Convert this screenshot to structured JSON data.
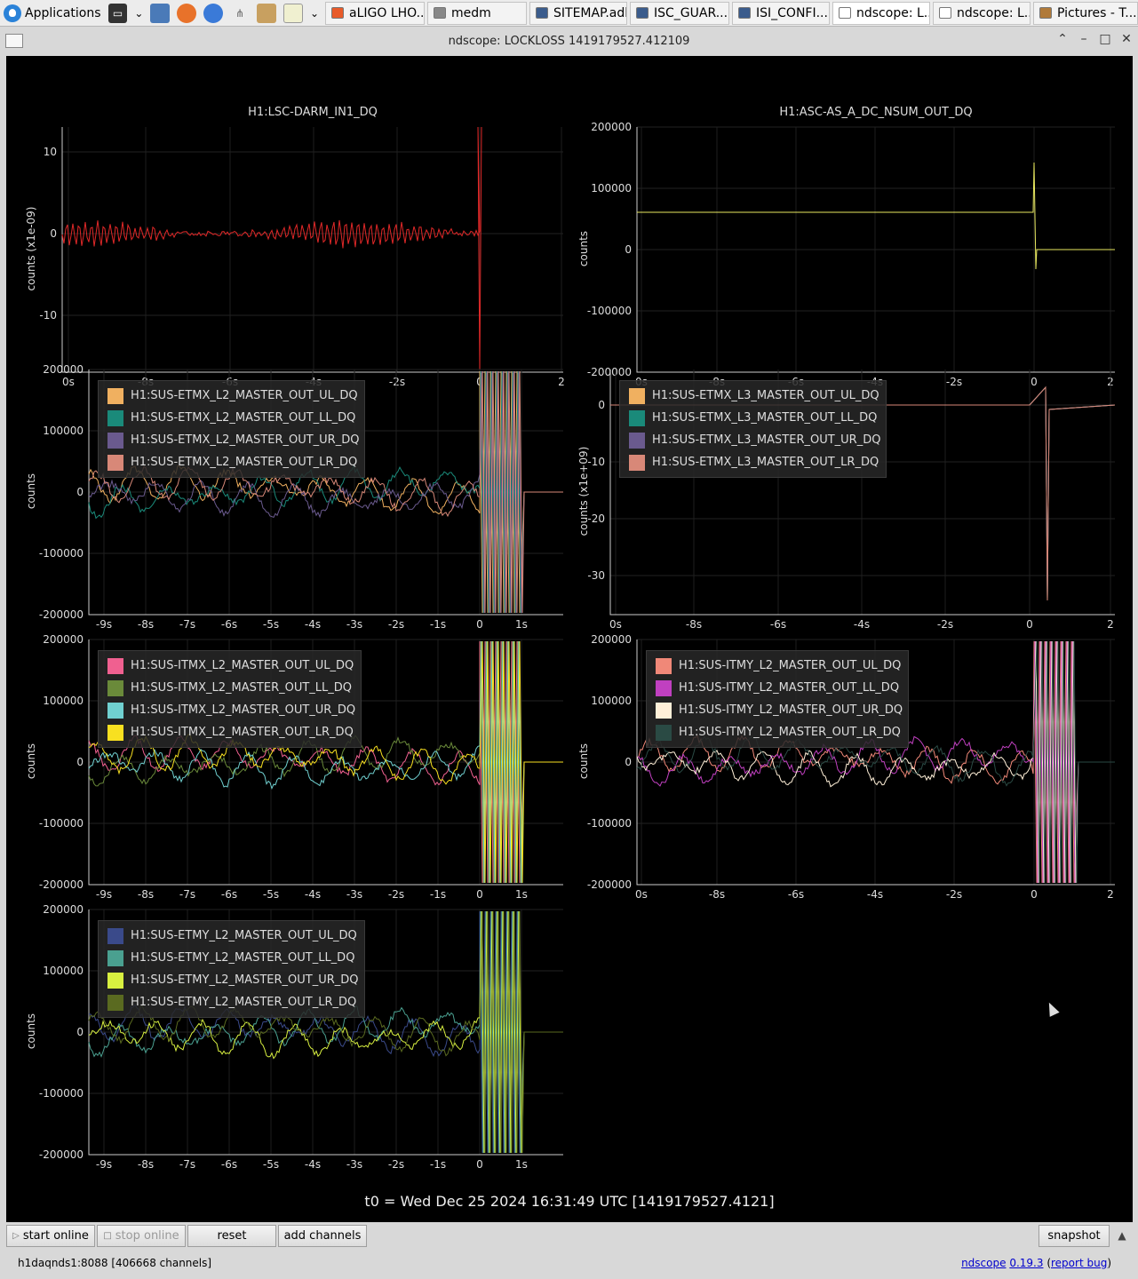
{
  "taskbar": {
    "apps_label": "Applications",
    "tasks": [
      {
        "label": "aLIGO LHO...",
        "color": "#e85b2a"
      },
      {
        "label": "medm",
        "color": "#888888"
      },
      {
        "label": "SITEMAP.adl",
        "color": "#3b5c8c"
      },
      {
        "label": "ISC_GUAR...",
        "color": "#3b5c8c"
      },
      {
        "label": "ISI_CONFI...",
        "color": "#3b5c8c"
      },
      {
        "label": "ndscope: L...",
        "color": "#ffffff"
      },
      {
        "label": "ndscope: L...",
        "color": "#ffffff"
      },
      {
        "label": "Pictures - T...",
        "color": "#b07a3a"
      }
    ]
  },
  "window": {
    "title": "ndscope: LOCKLOSS 1419179527.412109",
    "controls": [
      "^",
      "_",
      "□",
      "×"
    ]
  },
  "plots": [
    {
      "title": "H1:LSC-DARM_IN1_DQ",
      "ylabel": "counts (x1e-09)",
      "yticks": [
        "10",
        "0",
        "-10"
      ],
      "xticks": [
        "0s",
        "-8s",
        "-6s",
        "-4s",
        "-2s",
        "0",
        "2"
      ],
      "legend": []
    },
    {
      "title": "H1:ASC-AS_A_DC_NSUM_OUT_DQ",
      "ylabel": "counts",
      "yticks": [
        "200000",
        "100000",
        "0",
        "-100000",
        "-200000"
      ],
      "xticks": [
        "0s",
        "-8s",
        "-6s",
        "-4s",
        "-2s",
        "0",
        "2"
      ],
      "legend": []
    },
    {
      "title": "",
      "ylabel": "counts",
      "yticks": [
        "200000",
        "100000",
        "0",
        "-100000",
        "-200000"
      ],
      "xticks": [
        "-9s",
        "-8s",
        "-7s",
        "-6s",
        "-5s",
        "-4s",
        "-3s",
        "-2s",
        "-1s",
        "0",
        "1s"
      ],
      "legend": [
        {
          "label": "H1:SUS-ETMX_L2_MASTER_OUT_UL_DQ",
          "color": "#f0b060"
        },
        {
          "label": "H1:SUS-ETMX_L2_MASTER_OUT_LL_DQ",
          "color": "#1a8a7a"
        },
        {
          "label": "H1:SUS-ETMX_L2_MASTER_OUT_UR_DQ",
          "color": "#6a5a8e"
        },
        {
          "label": "H1:SUS-ETMX_L2_MASTER_OUT_LR_DQ",
          "color": "#d88878"
        }
      ]
    },
    {
      "title": "",
      "ylabel": "counts (x1e+09)",
      "yticks": [
        "0",
        "-10",
        "-20",
        "-30"
      ],
      "xticks": [
        "0s",
        "-8s",
        "-6s",
        "-4s",
        "-2s",
        "0",
        "2"
      ],
      "legend": [
        {
          "label": "H1:SUS-ETMX_L3_MASTER_OUT_UL_DQ",
          "color": "#f0b060"
        },
        {
          "label": "H1:SUS-ETMX_L3_MASTER_OUT_LL_DQ",
          "color": "#1a8a7a"
        },
        {
          "label": "H1:SUS-ETMX_L3_MASTER_OUT_UR_DQ",
          "color": "#6a5a8e"
        },
        {
          "label": "H1:SUS-ETMX_L3_MASTER_OUT_LR_DQ",
          "color": "#d88878"
        }
      ]
    },
    {
      "title": "",
      "ylabel": "counts",
      "yticks": [
        "200000",
        "100000",
        "0",
        "-100000",
        "-200000"
      ],
      "xticks": [
        "-9s",
        "-8s",
        "-7s",
        "-6s",
        "-5s",
        "-4s",
        "-3s",
        "-2s",
        "-1s",
        "0",
        "1s"
      ],
      "legend": [
        {
          "label": "H1:SUS-ITMX_L2_MASTER_OUT_UL_DQ",
          "color": "#f06090"
        },
        {
          "label": "H1:SUS-ITMX_L2_MASTER_OUT_LL_DQ",
          "color": "#6a8a3a"
        },
        {
          "label": "H1:SUS-ITMX_L2_MASTER_OUT_UR_DQ",
          "color": "#70d0d0"
        },
        {
          "label": "H1:SUS-ITMX_L2_MASTER_OUT_LR_DQ",
          "color": "#f8e020"
        }
      ]
    },
    {
      "title": "",
      "ylabel": "counts",
      "yticks": [
        "200000",
        "100000",
        "0",
        "-100000",
        "-200000"
      ],
      "xticks": [
        "0s",
        "-8s",
        "-6s",
        "-4s",
        "-2s",
        "0",
        "2"
      ],
      "legend": [
        {
          "label": "H1:SUS-ITMY_L2_MASTER_OUT_UL_DQ",
          "color": "#f08878"
        },
        {
          "label": "H1:SUS-ITMY_L2_MASTER_OUT_LL_DQ",
          "color": "#c040c0"
        },
        {
          "label": "H1:SUS-ITMY_L2_MASTER_OUT_UR_DQ",
          "color": "#fff0d8"
        },
        {
          "label": "H1:SUS-ITMY_L2_MASTER_OUT_LR_DQ",
          "color": "#2a4a44"
        }
      ]
    },
    {
      "title": "",
      "ylabel": "counts",
      "yticks": [
        "200000",
        "100000",
        "0",
        "-100000",
        "-200000"
      ],
      "xticks": [
        "-9s",
        "-8s",
        "-7s",
        "-6s",
        "-5s",
        "-4s",
        "-3s",
        "-2s",
        "-1s",
        "0",
        "1s"
      ],
      "legend": [
        {
          "label": "H1:SUS-ETMY_L2_MASTER_OUT_UL_DQ",
          "color": "#3a4a8a"
        },
        {
          "label": "H1:SUS-ETMY_L2_MASTER_OUT_LL_DQ",
          "color": "#4aa090"
        },
        {
          "label": "H1:SUS-ETMY_L2_MASTER_OUT_UR_DQ",
          "color": "#d8f040"
        },
        {
          "label": "H1:SUS-ETMY_L2_MASTER_OUT_LR_DQ",
          "color": "#5a6a20"
        }
      ]
    }
  ],
  "t0_label": "t0 = Wed Dec 25 2024 16:31:49 UTC [1419179527.4121]",
  "buttons": {
    "start_online": "start online",
    "stop_online": "stop online",
    "reset": "reset",
    "add_channels": "add channels",
    "snapshot": "snapshot"
  },
  "status": {
    "server": "h1daqnds1:8088  [406668 channels]",
    "app_name": "ndscope",
    "version": "0.19.3",
    "report_bug": "report bug"
  }
}
